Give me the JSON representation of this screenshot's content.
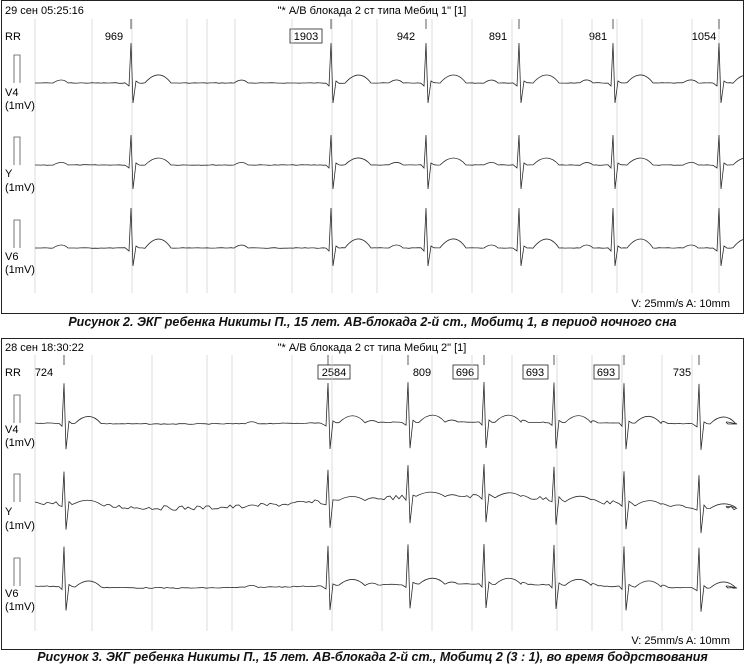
{
  "panels": [
    {
      "timestamp": "29 сен 05:25:16",
      "title": "\"* А/В блокада 2 ст типа Мебиц 1\" [1]",
      "rr_label": "RR",
      "rr_values": [
        {
          "text": "969",
          "boxed": false
        },
        {
          "text": "1903",
          "boxed": true
        },
        {
          "text": "942",
          "boxed": false
        },
        {
          "text": "891",
          "boxed": false
        },
        {
          "text": "981",
          "boxed": false
        },
        {
          "text": "1054",
          "boxed": false
        }
      ],
      "leads": [
        {
          "name": "V4",
          "scale": "(1mV)"
        },
        {
          "name": "Y",
          "scale": "(1mV)"
        },
        {
          "name": "V6",
          "scale": "(1mV)"
        }
      ],
      "speed_text": "V: 25mm/s  A: 10mm"
    },
    {
      "timestamp": "28 сен 18:30:22",
      "title": "\"* А/В блокада 2 ст типа Мебиц 2\" [1]",
      "rr_label": "RR",
      "rr_values": [
        {
          "text": "724",
          "boxed": false
        },
        {
          "text": "2584",
          "boxed": true
        },
        {
          "text": "809",
          "boxed": false
        },
        {
          "text": "696",
          "boxed": true
        },
        {
          "text": "693",
          "boxed": true
        },
        {
          "text": "693",
          "boxed": true
        },
        {
          "text": "735",
          "boxed": false
        }
      ],
      "leads": [
        {
          "name": "V4",
          "scale": "(1mV)"
        },
        {
          "name": "Y",
          "scale": "(1mV)"
        },
        {
          "name": "V6",
          "scale": "(1mV)"
        }
      ],
      "speed_text": "V: 25mm/s  A: 10mm"
    }
  ],
  "captions": [
    "Рисунок 2. ЭКГ ребенка Никиты П., 15 лет. АВ-блокада 2-й ст., Мобитц 1, в период ночного сна",
    "Рисунок 3. ЭКГ ребенка Никиты П., 15 лет. АВ-блокада 2-й ст., Мобитц 2 (3 : 1), во время бодрствования"
  ]
}
